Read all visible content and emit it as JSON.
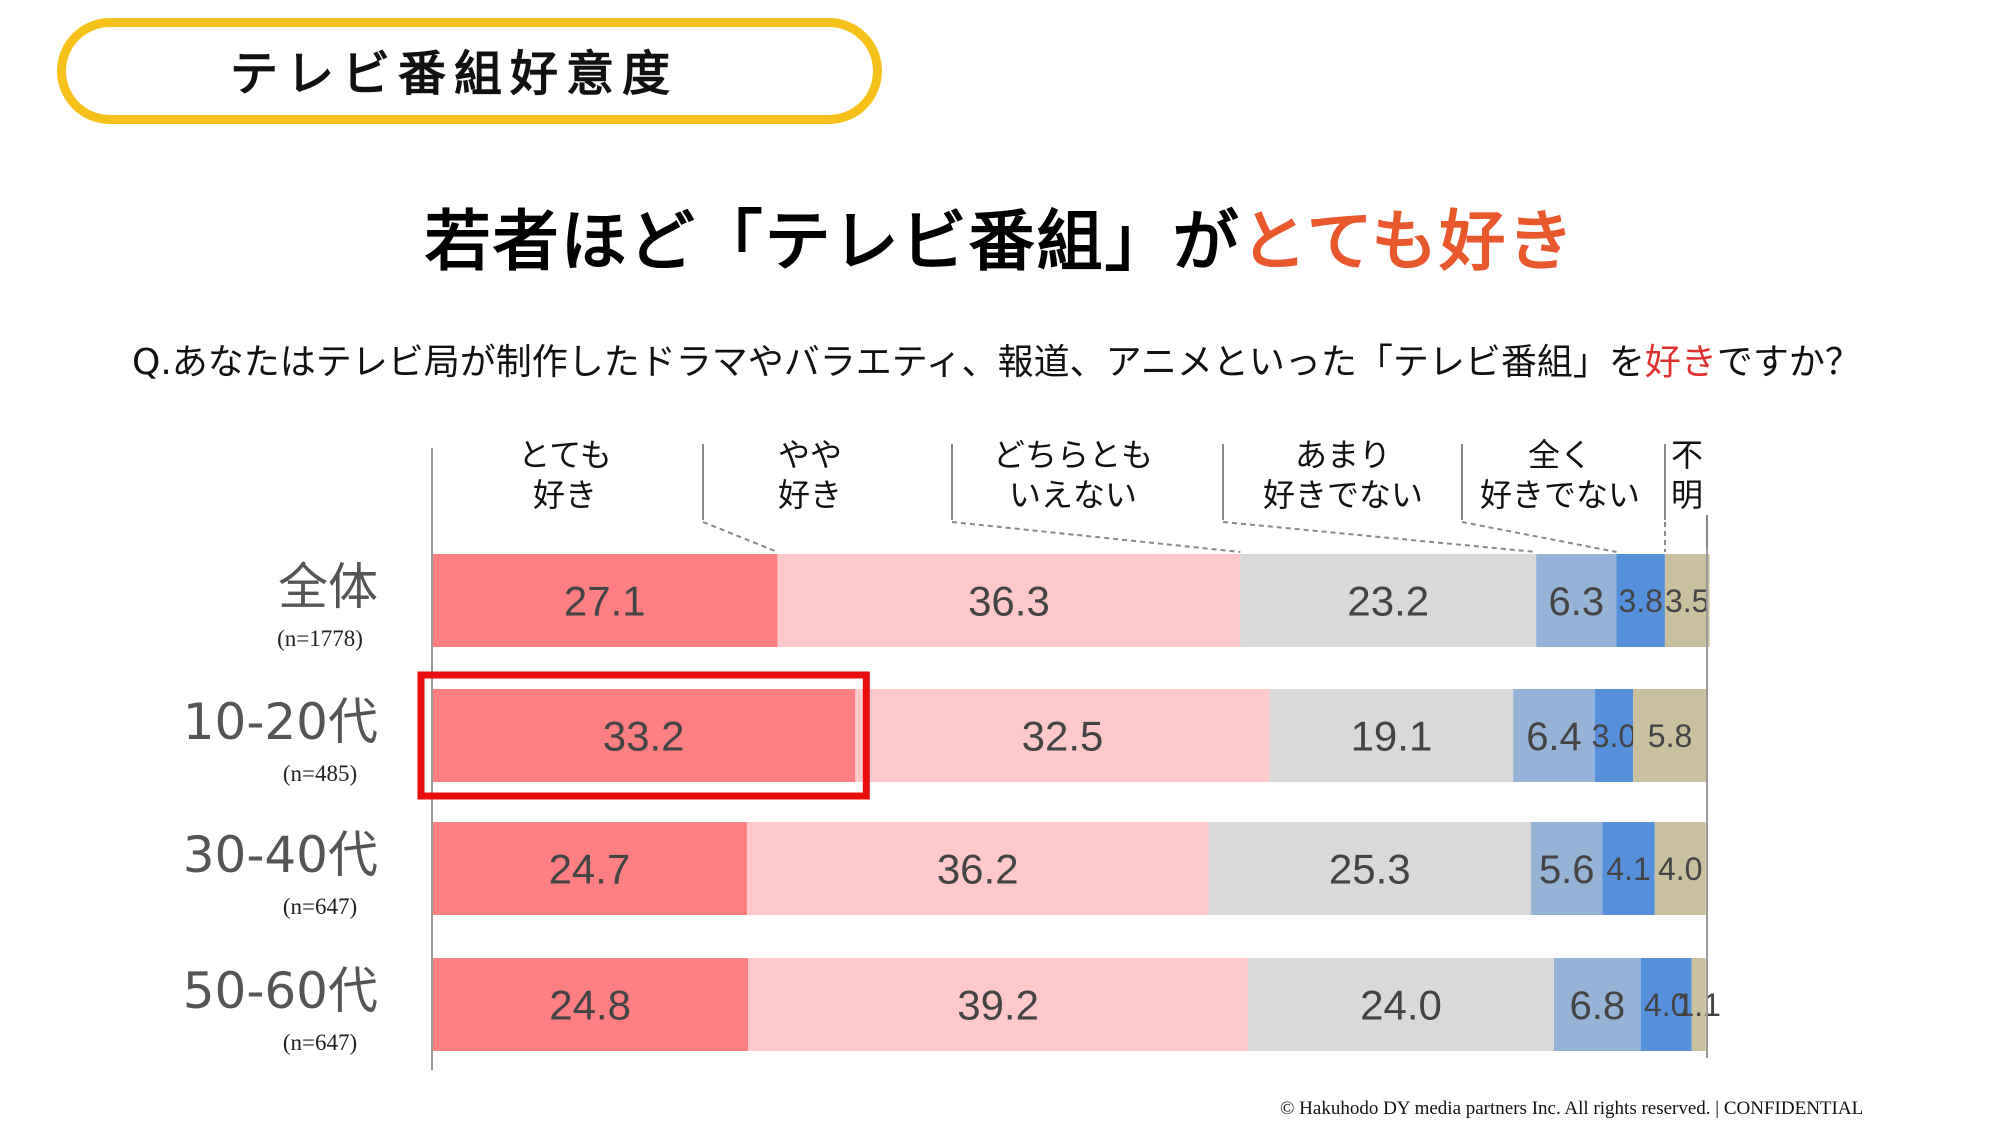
{
  "badge": {
    "title": "テレビ番組好意度"
  },
  "headline": {
    "prefix": "若者ほど「テレビ番組」が",
    "accent": "とても好き"
  },
  "question": {
    "prefix": "Q.あなたはテレビ局が制作したドラマやバラエティ、報道、アニメといった「テレビ番組」を",
    "accent": "好き",
    "suffix": "ですか？"
  },
  "footer": {
    "text": "© Hakuhodo DY media partners Inc. All rights reserved. | CONFIDENTIAL"
  },
  "colors": {
    "badge_border": "#F7C11B",
    "headline_accent": "#E9572D",
    "question_accent": "#E0302E",
    "highlight_box": "#E80E0E",
    "series": [
      "#FF7F82",
      "#FFC9CB",
      "#D9D9D9",
      "#95B3D7",
      "#5690DA",
      "#C9C19D"
    ]
  },
  "chart_data": {
    "type": "bar",
    "orientation": "horizontal",
    "stacked": true,
    "categories": [
      "全体",
      "10-20代",
      "30-40代",
      "50-60代"
    ],
    "sample_sizes": [
      "(n=1778)",
      "(n=485)",
      "(n=647)",
      "(n=647)"
    ],
    "legend_position": "top",
    "highlight": {
      "category": "10-20代",
      "series": "とても好き"
    },
    "series": [
      {
        "name": "とても\n好き",
        "values": [
          27.1,
          33.2,
          24.7,
          24.8
        ],
        "labels": [
          "27.1",
          "33.2",
          "24.7",
          "24.8"
        ]
      },
      {
        "name": "やや\n好き",
        "values": [
          36.3,
          32.5,
          36.2,
          39.2
        ],
        "labels": [
          "36.3",
          "32.5",
          "36.2",
          "39.2"
        ]
      },
      {
        "name": "どちらとも\nいえない",
        "values": [
          23.2,
          19.1,
          25.3,
          24.0
        ],
        "labels": [
          "23.2",
          "19.1",
          "25.3",
          "24.0"
        ]
      },
      {
        "name": "あまり\n好きでない",
        "values": [
          6.3,
          6.4,
          5.6,
          6.8
        ],
        "labels": [
          "6.3",
          "6.4",
          "5.6",
          "6.8"
        ]
      },
      {
        "name": "全く\n好きでない",
        "values": [
          3.8,
          3.0,
          4.1,
          4.0
        ],
        "labels": [
          "3.8",
          "3.0",
          "4.1",
          "4.0"
        ]
      },
      {
        "name": "不\n明",
        "values": [
          3.5,
          5.8,
          4.0,
          1.1
        ],
        "labels": [
          "3.5",
          "5.8",
          "4.0",
          "1.1"
        ]
      }
    ],
    "xlim": [
      0,
      100
    ]
  }
}
